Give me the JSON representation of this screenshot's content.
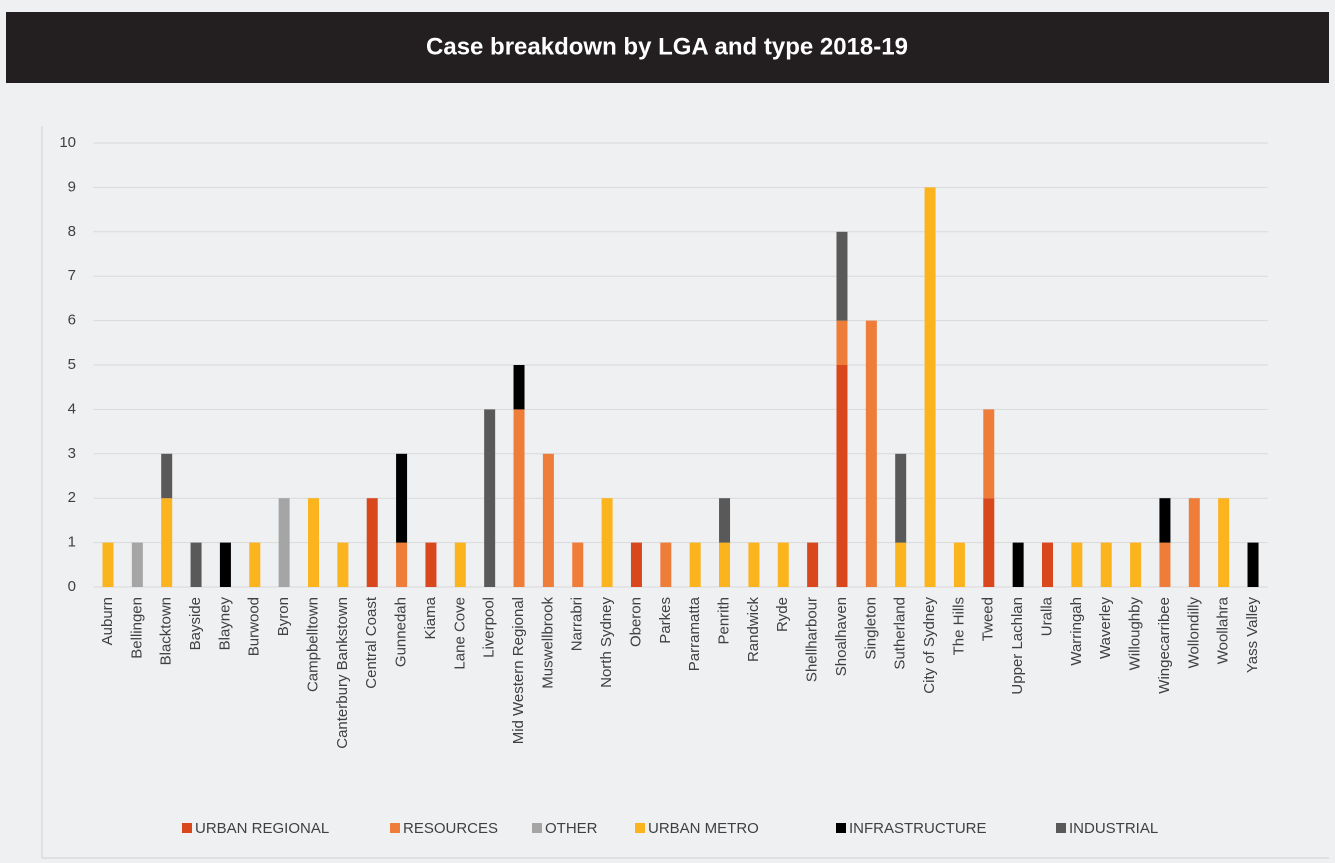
{
  "chart_data": {
    "type": "stacked_bar",
    "title": "Case breakdown by LGA and type 2018-19",
    "categories": [
      "Auburn",
      "Bellingen",
      "Blacktown",
      "Bayside",
      "Blayney",
      "Burwood",
      "Byron",
      "Campbelltown",
      "Canterbury Bankstown",
      "Central Coast",
      "Gunnedah",
      "Kiama",
      "Lane Cove",
      "Liverpool",
      "Mid Western Regional",
      "Muswellbrook",
      "Narrabri",
      "North Sydney",
      "Oberon",
      "Parkes",
      "Parramatta",
      "Penrith",
      "Randwick",
      "Ryde",
      "Shellharbour",
      "Shoalhaven",
      "Singleton",
      "Sutherland",
      "City of Sydney",
      "The Hills",
      "Tweed",
      "Upper Lachlan",
      "Uralla",
      "Warringah",
      "Waverley",
      "Willoughby",
      "Wingecarribee",
      "Wollondilly",
      "Woollahra",
      "Yass Valley"
    ],
    "series": [
      {
        "name": "URBAN REGIONAL",
        "color": "#d9481c",
        "values": [
          0,
          0,
          0,
          0,
          0,
          0,
          0,
          0,
          0,
          2,
          0,
          1,
          0,
          0,
          0,
          0,
          0,
          0,
          1,
          0,
          0,
          0,
          0,
          0,
          1,
          5,
          0,
          0,
          0,
          0,
          2,
          0,
          1,
          0,
          0,
          0,
          0,
          0,
          0,
          0
        ]
      },
      {
        "name": "RESOURCES",
        "color": "#ee7d3a",
        "values": [
          0,
          0,
          0,
          0,
          0,
          0,
          0,
          0,
          0,
          0,
          1,
          0,
          0,
          0,
          4,
          3,
          1,
          0,
          0,
          1,
          0,
          0,
          0,
          0,
          0,
          1,
          6,
          0,
          0,
          0,
          2,
          0,
          0,
          0,
          0,
          0,
          1,
          2,
          0,
          0
        ]
      },
      {
        "name": "OTHER",
        "color": "#a5a5a5",
        "values": [
          0,
          1,
          0,
          0,
          0,
          0,
          2,
          0,
          0,
          0,
          0,
          0,
          0,
          0,
          0,
          0,
          0,
          0,
          0,
          0,
          0,
          0,
          0,
          0,
          0,
          0,
          0,
          0,
          0,
          0,
          0,
          0,
          0,
          0,
          0,
          0,
          0,
          0,
          0,
          0
        ]
      },
      {
        "name": "URBAN METRO",
        "color": "#fbb31e",
        "values": [
          1,
          0,
          2,
          0,
          0,
          1,
          0,
          2,
          1,
          0,
          0,
          0,
          1,
          0,
          0,
          0,
          0,
          2,
          0,
          0,
          1,
          1,
          1,
          1,
          0,
          0,
          0,
          1,
          9,
          1,
          0,
          0,
          0,
          1,
          1,
          1,
          0,
          0,
          2,
          0
        ]
      },
      {
        "name": "INFRASTRUCTURE",
        "color": "#000000",
        "values": [
          0,
          0,
          0,
          0,
          1,
          0,
          0,
          0,
          0,
          0,
          2,
          0,
          0,
          0,
          1,
          0,
          0,
          0,
          0,
          0,
          0,
          0,
          0,
          0,
          0,
          0,
          0,
          0,
          0,
          0,
          0,
          1,
          0,
          0,
          0,
          0,
          1,
          0,
          0,
          1
        ]
      },
      {
        "name": "INDUSTRIAL",
        "color": "#595959",
        "values": [
          0,
          0,
          1,
          1,
          0,
          0,
          0,
          0,
          0,
          0,
          0,
          0,
          0,
          4,
          0,
          0,
          0,
          0,
          0,
          0,
          0,
          1,
          0,
          0,
          0,
          2,
          0,
          2,
          0,
          0,
          0,
          0,
          0,
          0,
          0,
          0,
          0,
          0,
          0,
          0
        ]
      }
    ],
    "ylim": [
      0,
      10
    ],
    "yticks": [
      0,
      1,
      2,
      3,
      4,
      5,
      6,
      7,
      8,
      9,
      10
    ],
    "grid": true,
    "legend": "bottom"
  }
}
